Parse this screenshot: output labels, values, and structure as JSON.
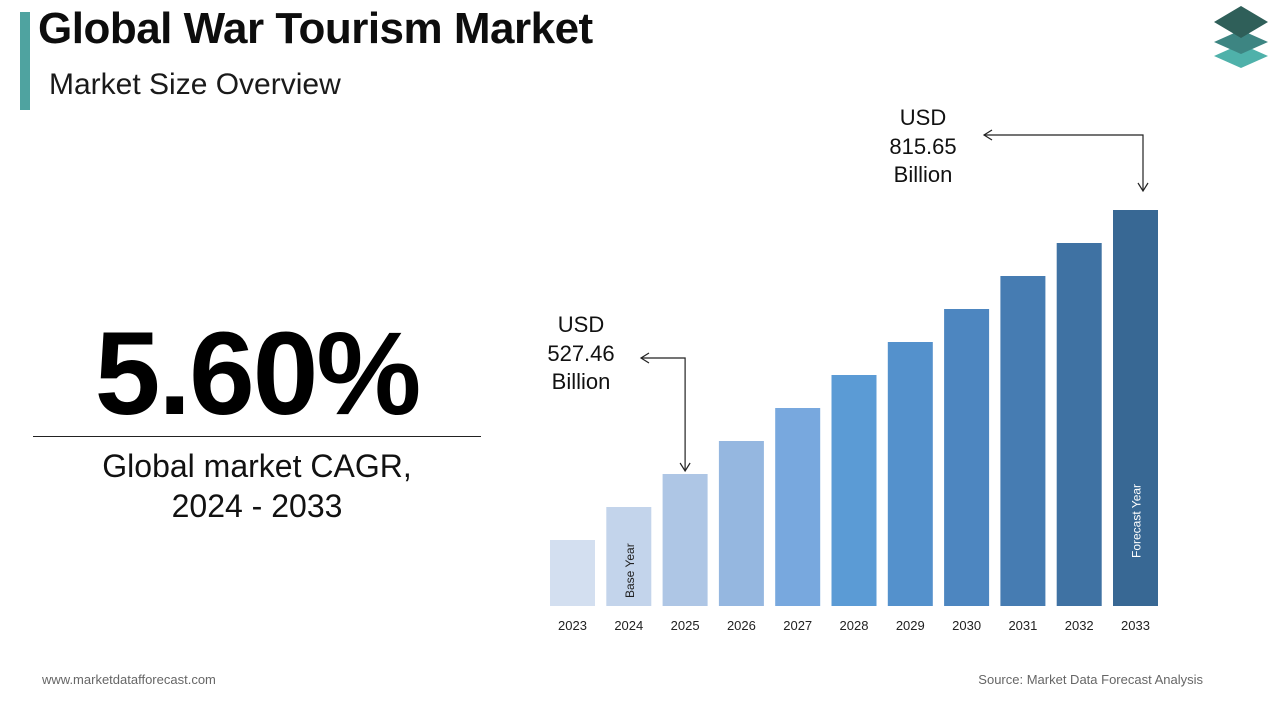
{
  "header": {
    "title": "Global War Tourism Market",
    "subtitle": "Market Size Overview"
  },
  "cagr": {
    "value": "5.60%",
    "label_line1": "Global market CAGR,",
    "label_line2": "2024 - 2033"
  },
  "callouts": {
    "start": {
      "line1": "USD",
      "line2": "527.46",
      "line3": "Billion"
    },
    "end": {
      "line1": "USD",
      "line2": "815.65",
      "line3": "Billion"
    }
  },
  "footer": {
    "website": "www.marketdatafforecast.com",
    "source": "Source: Market Data Forecast Analysis"
  },
  "chart_data": {
    "type": "bar",
    "title": "",
    "xlabel": "",
    "ylabel": "",
    "categories": [
      "2023",
      "2024",
      "2025",
      "2026",
      "2027",
      "2028",
      "2029",
      "2030",
      "2031",
      "2032",
      "2033"
    ],
    "values": [
      null,
      null,
      527.46,
      null,
      null,
      null,
      null,
      null,
      null,
      null,
      815.65
    ],
    "value_unit": "USD Billion",
    "bar_annotations": [
      {
        "category": "2024",
        "text": "Base Year"
      },
      {
        "category": "2033",
        "text": "Forecast Year"
      }
    ],
    "colors": [
      "#d3dff0",
      "#c3d4eb",
      "#aec6e5",
      "#95b7e0",
      "#78a8de",
      "#5b9bd5",
      "#5491cc",
      "#4d86c0",
      "#467cb2",
      "#3f72a3",
      "#386894"
    ],
    "grid": false,
    "legend": "none"
  },
  "logo_colors": [
    "#2f5f59",
    "#3d8582",
    "#4fb1aa"
  ]
}
